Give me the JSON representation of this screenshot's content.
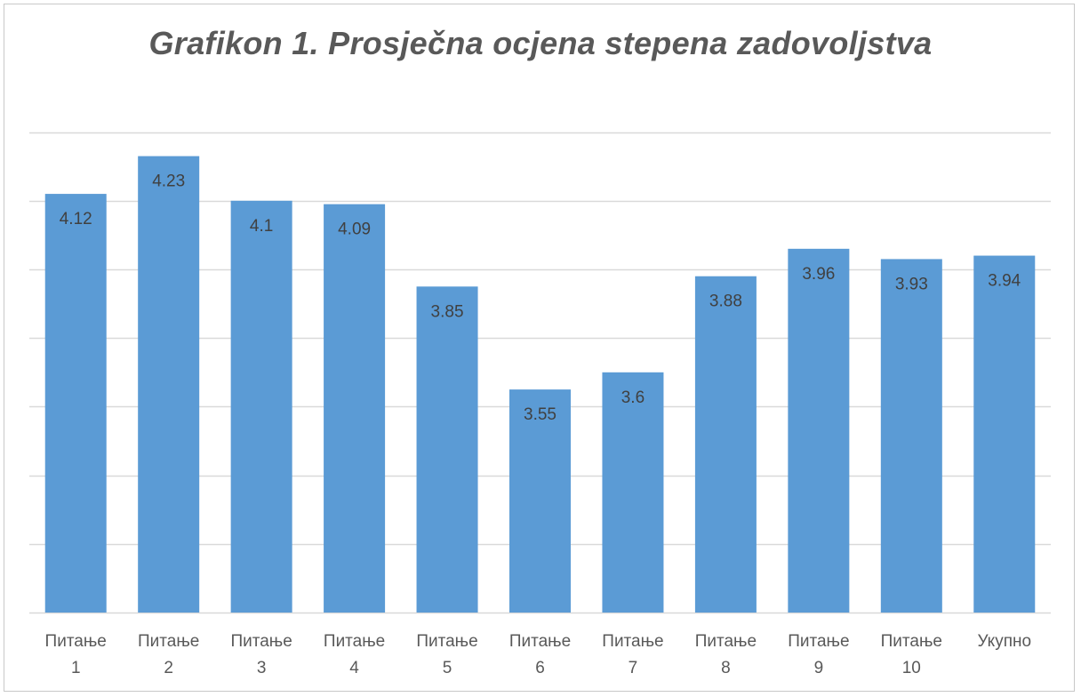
{
  "chart_data": {
    "type": "bar",
    "title": "Grafikon 1. Prosječna ocjena stepena zadovoljstva",
    "categories": [
      [
        "Питање",
        "1"
      ],
      [
        "Питање",
        "2"
      ],
      [
        "Питање",
        "3"
      ],
      [
        "Питање",
        "4"
      ],
      [
        "Питање",
        "5"
      ],
      [
        "Питање",
        "6"
      ],
      [
        "Питање",
        "7"
      ],
      [
        "Питање",
        "8"
      ],
      [
        "Питање",
        "9"
      ],
      [
        "Питање",
        "10"
      ],
      [
        "Укупно"
      ]
    ],
    "values": [
      4.12,
      4.23,
      4.1,
      4.09,
      3.85,
      3.55,
      3.6,
      3.88,
      3.96,
      3.93,
      3.94
    ],
    "value_labels": [
      "4.12",
      "4.23",
      "4.1",
      "4.09",
      "3.85",
      "3.55",
      "3.6",
      "3.88",
      "3.96",
      "3.93",
      "3.94"
    ],
    "ylim": [
      2.9,
      4.4
    ],
    "gridlines": [
      2.9,
      3.1,
      3.3,
      3.5,
      3.7,
      3.9,
      4.1,
      4.3
    ],
    "grid": true,
    "legend": "none",
    "bar_color": "#5b9bd5",
    "grid_color": "#d9d9d9"
  }
}
